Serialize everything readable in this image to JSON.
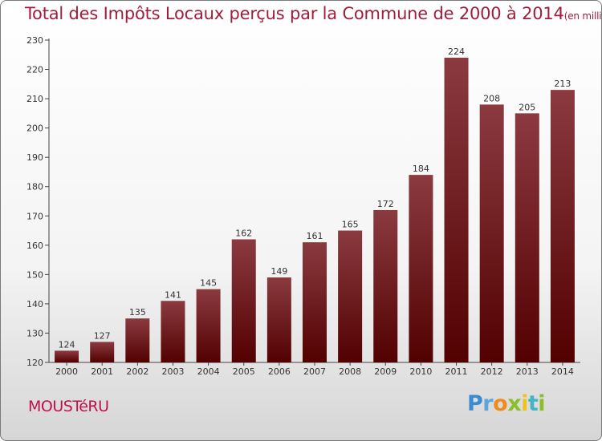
{
  "title": {
    "main": "Total des Impôts Locaux perçus par la Commune de 2000 à 2014",
    "unit": "(en milliers d'€)"
  },
  "commune": "MOUSTéRU",
  "logo": {
    "text": "Proxiti",
    "letters": [
      "P",
      "r",
      "o",
      "x",
      "i",
      "t",
      "i"
    ]
  },
  "colors": {
    "bar_top": "#8b3a40",
    "bar_bottom": "#520000",
    "title": "#a01e3c",
    "commune": "#c0114a"
  },
  "chart_data": {
    "type": "bar",
    "title": "Total des Impôts Locaux perçus par la Commune de 2000 à 2014",
    "xlabel": "",
    "ylabel": "en milliers d'€",
    "categories": [
      "2000",
      "2001",
      "2002",
      "2003",
      "2004",
      "2005",
      "2006",
      "2007",
      "2008",
      "2009",
      "2010",
      "2011",
      "2012",
      "2013",
      "2014"
    ],
    "values": [
      124,
      127,
      135,
      141,
      145,
      162,
      149,
      161,
      165,
      172,
      184,
      224,
      208,
      205,
      213
    ],
    "ylim": [
      120,
      230
    ],
    "yticks": [
      120,
      130,
      140,
      150,
      160,
      170,
      180,
      190,
      200,
      210,
      220,
      230
    ],
    "grid": false
  }
}
